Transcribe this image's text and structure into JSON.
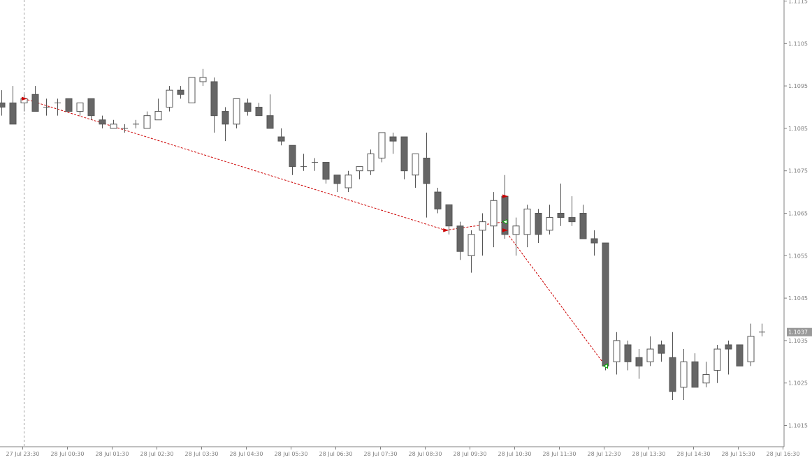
{
  "chart_data": {
    "type": "candlestick",
    "symbol_price_axis": {
      "ticks": [
        "1.1115",
        "1.1105",
        "1.1095",
        "1.1085",
        "1.1075",
        "1.1065",
        "1.1055",
        "1.1045",
        "1.1035",
        "1.1025",
        "1.1015"
      ],
      "range": [
        1.101,
        1.1116
      ]
    },
    "time_axis": {
      "ticks": [
        {
          "label": "27 Jul 23:30",
          "bar": 2
        },
        {
          "label": "28 Jul 00:30",
          "bar": 6
        },
        {
          "label": "28 Jul 01:30",
          "bar": 10
        },
        {
          "label": "28 Jul 02:30",
          "bar": 14
        },
        {
          "label": "28 Jul 03:30",
          "bar": 18
        },
        {
          "label": "28 Jul 04:30",
          "bar": 22
        },
        {
          "label": "28 Jul 05:30",
          "bar": 26
        },
        {
          "label": "28 Jul 06:30",
          "bar": 30
        },
        {
          "label": "28 Jul 07:30",
          "bar": 34
        },
        {
          "label": "28 Jul 08:30",
          "bar": 38
        },
        {
          "label": "28 Jul 09:30",
          "bar": 42
        },
        {
          "label": "28 Jul 10:30",
          "bar": 46
        },
        {
          "label": "28 Jul 11:30",
          "bar": 50
        },
        {
          "label": "28 Jul 12:30",
          "bar": 54
        },
        {
          "label": "28 Jul 13:30",
          "bar": 58
        },
        {
          "label": "28 Jul 14:30",
          "bar": 62
        },
        {
          "label": "28 Jul 15:30",
          "bar": 66
        },
        {
          "label": "28 Jul 16:30",
          "bar": 70
        }
      ]
    },
    "bar_interval": "15m",
    "candles": [
      {
        "o": 1.1091,
        "h": 1.1094,
        "l": 1.1088,
        "c": 1.109
      },
      {
        "o": 1.1091,
        "h": 1.1095,
        "l": 1.1086,
        "c": 1.1086
      },
      {
        "o": 1.1091,
        "h": 1.1093,
        "l": 1.1089,
        "c": 1.1092
      },
      {
        "o": 1.1093,
        "h": 1.1095,
        "l": 1.1089,
        "c": 1.1089
      },
      {
        "o": 1.109,
        "h": 1.1092,
        "l": 1.1088,
        "c": 1.109
      },
      {
        "o": 1.1091,
        "h": 1.1092,
        "l": 1.1088,
        "c": 1.1091
      },
      {
        "o": 1.1092,
        "h": 1.1092,
        "l": 1.1089,
        "c": 1.1089
      },
      {
        "o": 1.1089,
        "h": 1.1091,
        "l": 1.1088,
        "c": 1.1091
      },
      {
        "o": 1.1092,
        "h": 1.1092,
        "l": 1.1087,
        "c": 1.1088
      },
      {
        "o": 1.1087,
        "h": 1.1088,
        "l": 1.1085,
        "c": 1.1086
      },
      {
        "o": 1.1085,
        "h": 1.1087,
        "l": 1.1085,
        "c": 1.1086
      },
      {
        "o": 1.1085,
        "h": 1.1086,
        "l": 1.1084,
        "c": 1.1085
      },
      {
        "o": 1.1086,
        "h": 1.1087,
        "l": 1.1085,
        "c": 1.1086
      },
      {
        "o": 1.1085,
        "h": 1.1089,
        "l": 1.1085,
        "c": 1.1088
      },
      {
        "o": 1.1087,
        "h": 1.1092,
        "l": 1.1087,
        "c": 1.1089
      },
      {
        "o": 1.109,
        "h": 1.1095,
        "l": 1.1089,
        "c": 1.1094
      },
      {
        "o": 1.1094,
        "h": 1.1095,
        "l": 1.1092,
        "c": 1.1093
      },
      {
        "o": 1.1091,
        "h": 1.1097,
        "l": 1.1091,
        "c": 1.1097
      },
      {
        "o": 1.1096,
        "h": 1.1099,
        "l": 1.1095,
        "c": 1.1097
      },
      {
        "o": 1.1096,
        "h": 1.1097,
        "l": 1.1084,
        "c": 1.1088
      },
      {
        "o": 1.1089,
        "h": 1.109,
        "l": 1.1082,
        "c": 1.1086
      },
      {
        "o": 1.1086,
        "h": 1.1092,
        "l": 1.1085,
        "c": 1.1092
      },
      {
        "o": 1.1091,
        "h": 1.1092,
        "l": 1.1088,
        "c": 1.1089
      },
      {
        "o": 1.109,
        "h": 1.1091,
        "l": 1.1088,
        "c": 1.1088
      },
      {
        "o": 1.1088,
        "h": 1.1093,
        "l": 1.1085,
        "c": 1.1085
      },
      {
        "o": 1.1083,
        "h": 1.1085,
        "l": 1.1081,
        "c": 1.1082
      },
      {
        "o": 1.1081,
        "h": 1.1081,
        "l": 1.1074,
        "c": 1.1076
      },
      {
        "o": 1.1076,
        "h": 1.1079,
        "l": 1.1075,
        "c": 1.1076
      },
      {
        "o": 1.1077,
        "h": 1.1078,
        "l": 1.1075,
        "c": 1.1077
      },
      {
        "o": 1.1077,
        "h": 1.1077,
        "l": 1.1072,
        "c": 1.1073
      },
      {
        "o": 1.1074,
        "h": 1.1074,
        "l": 1.107,
        "c": 1.1072
      },
      {
        "o": 1.1071,
        "h": 1.1075,
        "l": 1.107,
        "c": 1.1074
      },
      {
        "o": 1.1075,
        "h": 1.1076,
        "l": 1.1073,
        "c": 1.1076
      },
      {
        "o": 1.1075,
        "h": 1.108,
        "l": 1.1074,
        "c": 1.1079
      },
      {
        "o": 1.1078,
        "h": 1.1084,
        "l": 1.1077,
        "c": 1.1084
      },
      {
        "o": 1.1083,
        "h": 1.1084,
        "l": 1.1079,
        "c": 1.1082
      },
      {
        "o": 1.1083,
        "h": 1.1083,
        "l": 1.1073,
        "c": 1.1075
      },
      {
        "o": 1.1074,
        "h": 1.1079,
        "l": 1.1071,
        "c": 1.1079
      },
      {
        "o": 1.1078,
        "h": 1.1084,
        "l": 1.1064,
        "c": 1.1072
      },
      {
        "o": 1.107,
        "h": 1.1071,
        "l": 1.1065,
        "c": 1.1066
      },
      {
        "o": 1.1067,
        "h": 1.1067,
        "l": 1.106,
        "c": 1.1062
      },
      {
        "o": 1.1062,
        "h": 1.1063,
        "l": 1.1054,
        "c": 1.1056
      },
      {
        "o": 1.1055,
        "h": 1.1061,
        "l": 1.1051,
        "c": 1.106
      },
      {
        "o": 1.1061,
        "h": 1.1065,
        "l": 1.1055,
        "c": 1.1063
      },
      {
        "o": 1.1062,
        "h": 1.107,
        "l": 1.1057,
        "c": 1.1068
      },
      {
        "o": 1.1069,
        "h": 1.1074,
        "l": 1.1059,
        "c": 1.106
      },
      {
        "o": 1.106,
        "h": 1.1064,
        "l": 1.1055,
        "c": 1.1062
      },
      {
        "o": 1.106,
        "h": 1.1067,
        "l": 1.1057,
        "c": 1.1066
      },
      {
        "o": 1.1065,
        "h": 1.1066,
        "l": 1.1058,
        "c": 1.106
      },
      {
        "o": 1.1061,
        "h": 1.1067,
        "l": 1.106,
        "c": 1.1064
      },
      {
        "o": 1.1065,
        "h": 1.1072,
        "l": 1.1062,
        "c": 1.1064
      },
      {
        "o": 1.1064,
        "h": 1.1069,
        "l": 1.1062,
        "c": 1.1063
      },
      {
        "o": 1.1065,
        "h": 1.1067,
        "l": 1.1059,
        "c": 1.1059
      },
      {
        "o": 1.1059,
        "h": 1.1061,
        "l": 1.1055,
        "c": 1.1058
      },
      {
        "o": 1.1058,
        "h": 1.1058,
        "l": 1.1028,
        "c": 1.1029
      },
      {
        "o": 1.103,
        "h": 1.1037,
        "l": 1.1027,
        "c": 1.1035
      },
      {
        "o": 1.1034,
        "h": 1.1035,
        "l": 1.1028,
        "c": 1.103
      },
      {
        "o": 1.1031,
        "h": 1.1033,
        "l": 1.1026,
        "c": 1.1029
      },
      {
        "o": 1.103,
        "h": 1.1036,
        "l": 1.1029,
        "c": 1.1033
      },
      {
        "o": 1.1034,
        "h": 1.1035,
        "l": 1.103,
        "c": 1.1032
      },
      {
        "o": 1.1031,
        "h": 1.1037,
        "l": 1.1021,
        "c": 1.1023
      },
      {
        "o": 1.1024,
        "h": 1.1033,
        "l": 1.1021,
        "c": 1.103
      },
      {
        "o": 1.103,
        "h": 1.1032,
        "l": 1.1024,
        "c": 1.1024
      },
      {
        "o": 1.1025,
        "h": 1.103,
        "l": 1.1024,
        "c": 1.1027
      },
      {
        "o": 1.1028,
        "h": 1.1034,
        "l": 1.1025,
        "c": 1.1033
      },
      {
        "o": 1.1034,
        "h": 1.1035,
        "l": 1.1027,
        "c": 1.1033
      },
      {
        "o": 1.1034,
        "h": 1.1034,
        "l": 1.1029,
        "c": 1.1029
      },
      {
        "o": 1.103,
        "h": 1.1039,
        "l": 1.1029,
        "c": 1.1036
      },
      {
        "o": 1.1037,
        "h": 1.1039,
        "l": 1.1036,
        "c": 1.1037
      }
    ],
    "current_price_label": "1.1037",
    "current_price": 1.1037,
    "trade_lines": [
      {
        "from_bar": 2,
        "from_price": 1.1092,
        "to_bar": 39.7,
        "to_price": 1.1061
      },
      {
        "from_bar": 39.7,
        "from_price": 1.1061,
        "to_bar": 45,
        "to_price": 1.1063
      },
      {
        "from_bar": 45,
        "from_price": 1.1069,
        "to_bar": 45,
        "to_price": 1.1061
      },
      {
        "from_bar": 45,
        "from_price": 1.1061,
        "to_bar": 54,
        "to_price": 1.1029
      }
    ],
    "trade_markers": [
      {
        "bar": 2,
        "price": 1.1092,
        "kind": "entry"
      },
      {
        "bar": 39.7,
        "price": 1.1061,
        "kind": "entry"
      },
      {
        "bar": 45,
        "price": 1.1069,
        "kind": "entry"
      },
      {
        "bar": 45,
        "price": 1.1061,
        "kind": "entry"
      },
      {
        "bar": 45,
        "price": 1.1063,
        "kind": "exit"
      },
      {
        "bar": 54,
        "price": 1.1029,
        "kind": "exit"
      }
    ],
    "colors": {
      "bear_body": "#666666",
      "bull_body": "#ffffff",
      "outline": "#555555",
      "wick": "#555555",
      "axis": "#808080",
      "trade_line": "#cc0000",
      "entry_marker": "#cc0000",
      "exit_marker": "#00a000",
      "price_tag_bg": "#999999",
      "vertical_separator": "#a0a0a0"
    }
  }
}
